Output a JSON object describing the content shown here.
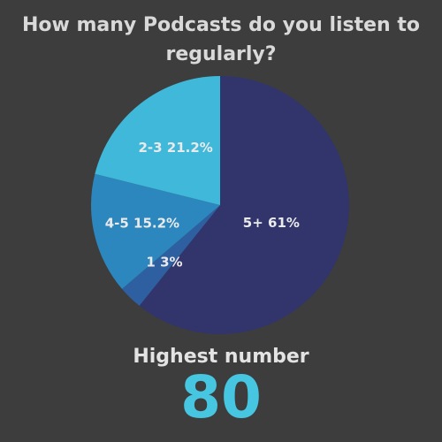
{
  "chart_data": {
    "type": "pie",
    "title": "How many Podcasts do you listen to regularly?",
    "slices": [
      {
        "label": "5+",
        "value": 61,
        "display": "5+ 61%",
        "color": "#31356b"
      },
      {
        "label": "1",
        "value": 3,
        "display": "1  3%",
        "color": "#2e5fa0"
      },
      {
        "label": "4-5",
        "value": 15.2,
        "display": "4-5 15.2%",
        "color": "#2b87bd"
      },
      {
        "label": "2-3",
        "value": 21.2,
        "display": "2-3  21.2%",
        "color": "#40b8d9"
      }
    ],
    "legend": "none"
  },
  "stat": {
    "label": "Highest number",
    "value": "80",
    "value_color": "#46c6e0"
  }
}
